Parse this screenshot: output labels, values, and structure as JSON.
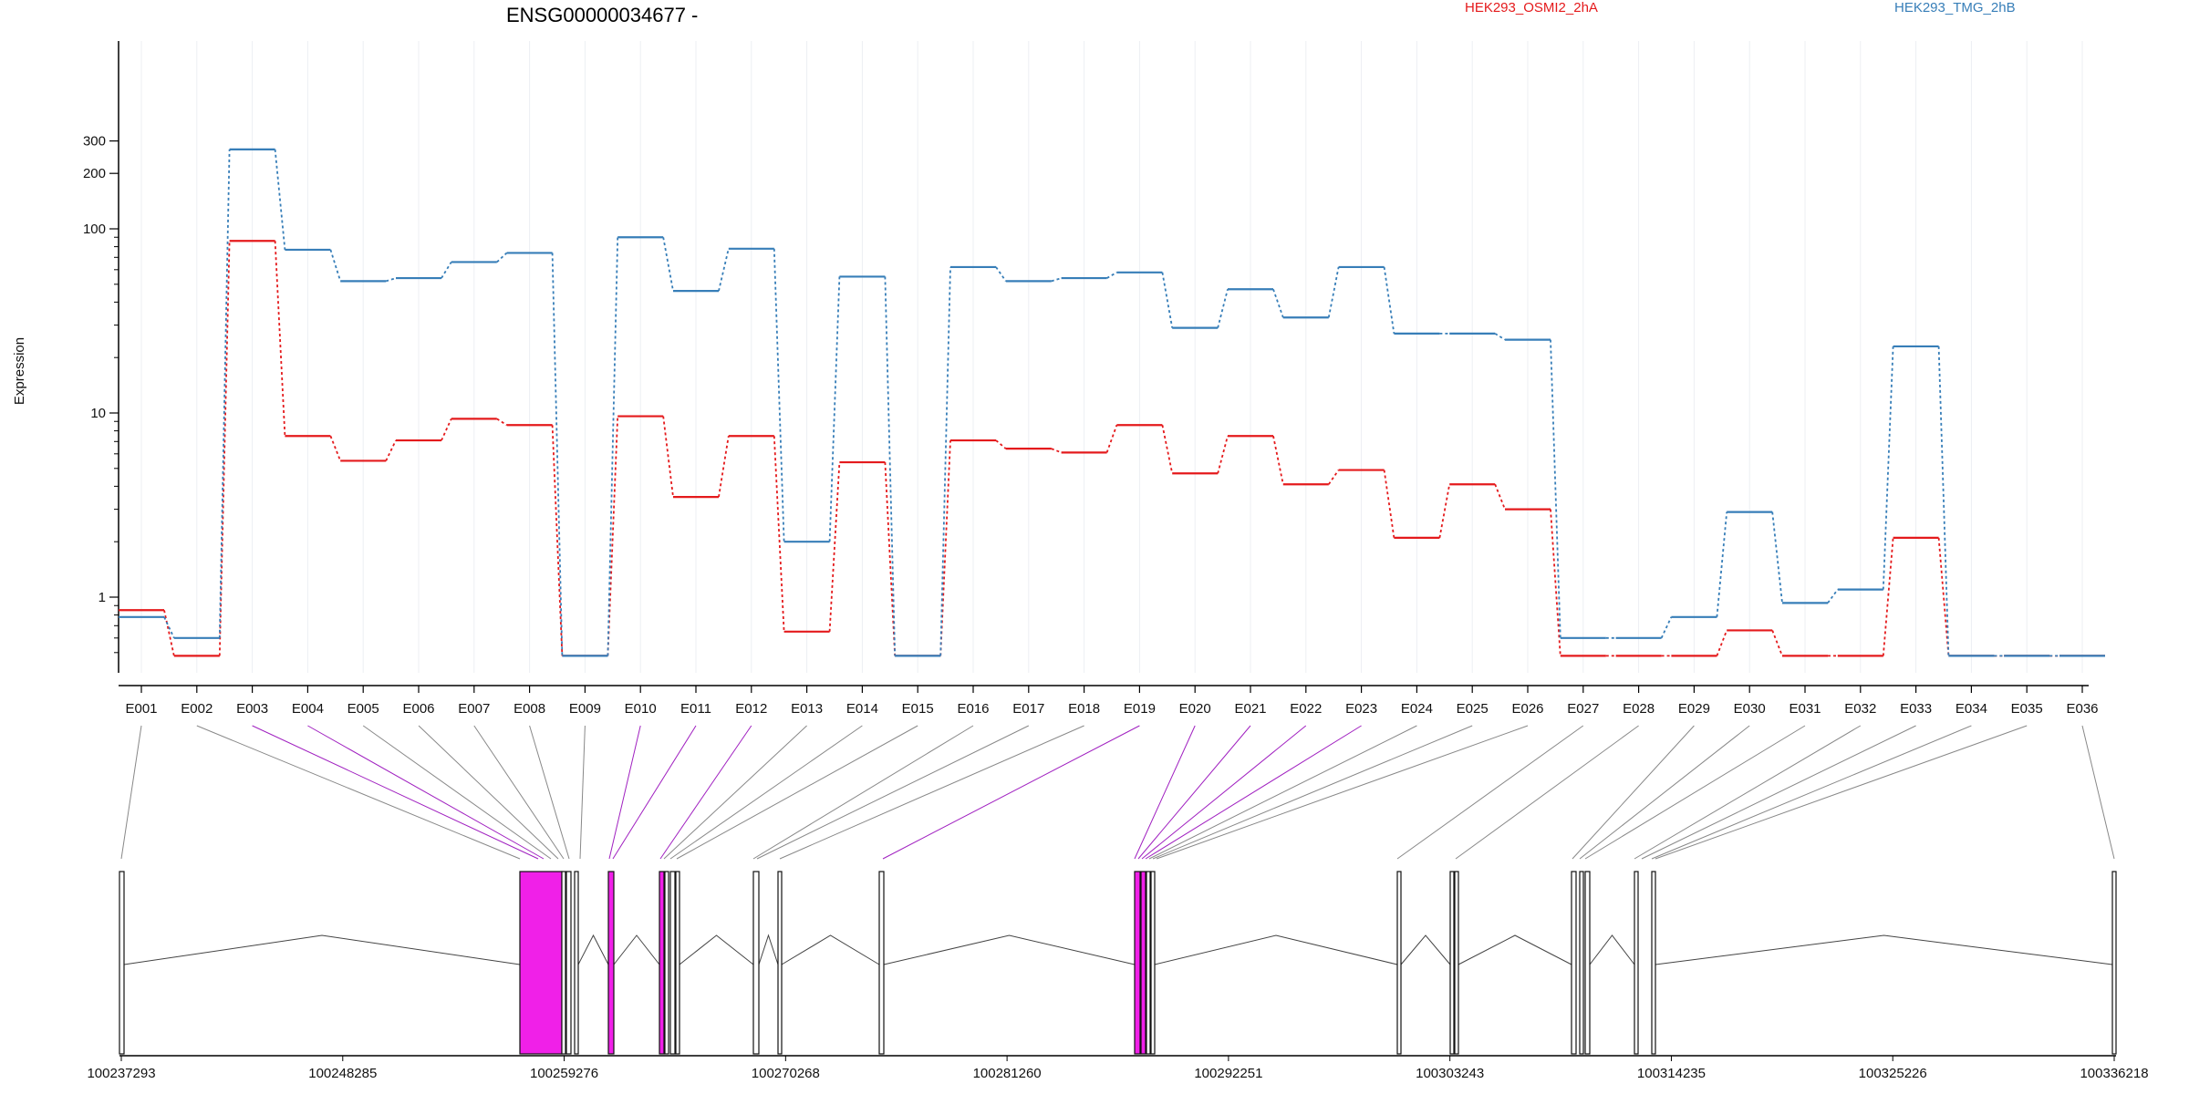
{
  "chart_data": {
    "type": "line",
    "title": "ENSG00000034677 -",
    "ylabel": "Expression",
    "yscale": "log",
    "ylim": [
      0.5,
      360
    ],
    "yticks": [
      "1",
      "10",
      "100",
      "200",
      "300"
    ],
    "grid": "vertical",
    "legend_position": "top-right",
    "categories": [
      "E001",
      "E002",
      "E003",
      "E004",
      "E005",
      "E006",
      "E007",
      "E008",
      "E009",
      "E010",
      "E011",
      "E012",
      "E013",
      "E014",
      "E015",
      "E016",
      "E017",
      "E018",
      "E019",
      "E020",
      "E021",
      "E022",
      "E023",
      "E024",
      "E025",
      "E026",
      "E027",
      "E028",
      "E029",
      "E030",
      "E031",
      "E032",
      "E033",
      "E034",
      "E035",
      "E036"
    ],
    "series": [
      {
        "name": "HEK293_OSMI2_2hA",
        "color": "#e41a1c",
        "values": [
          0.85,
          0.48,
          86,
          7.5,
          5.5,
          7.1,
          9.3,
          8.6,
          0.48,
          9.6,
          3.5,
          7.5,
          0.65,
          5.4,
          0.48,
          7.1,
          6.4,
          6.1,
          8.6,
          4.7,
          7.5,
          4.1,
          4.9,
          2.1,
          4.1,
          3.0,
          0.48,
          0.48,
          0.48,
          0.66,
          0.48,
          0.48,
          2.1,
          0.48,
          0.48,
          0.48
        ]
      },
      {
        "name": "HEK293_TMG_2hB",
        "color": "#377eb8",
        "values": [
          0.78,
          0.6,
          270,
          77,
          52,
          54,
          66,
          74,
          0.48,
          90,
          46,
          78,
          2.0,
          55,
          0.48,
          62,
          52,
          54,
          58,
          29,
          47,
          33,
          62,
          27,
          27,
          25,
          0.6,
          0.6,
          0.78,
          2.9,
          0.93,
          1.1,
          23,
          0.48,
          0.48,
          0.48
        ]
      }
    ],
    "highlight_color": "#f020e8",
    "highlighted_exons": [
      "E003",
      "E004",
      "E010",
      "E011",
      "E012",
      "E019",
      "E020",
      "E021",
      "E022",
      "E023"
    ],
    "genome_axis_ticks": [
      "100237293",
      "100248285",
      "100259276",
      "100270268",
      "100281260",
      "100292251",
      "100303243",
      "100314235",
      "100325226",
      "100336218"
    ],
    "genome_range": [
      100237293,
      100336218
    ]
  }
}
